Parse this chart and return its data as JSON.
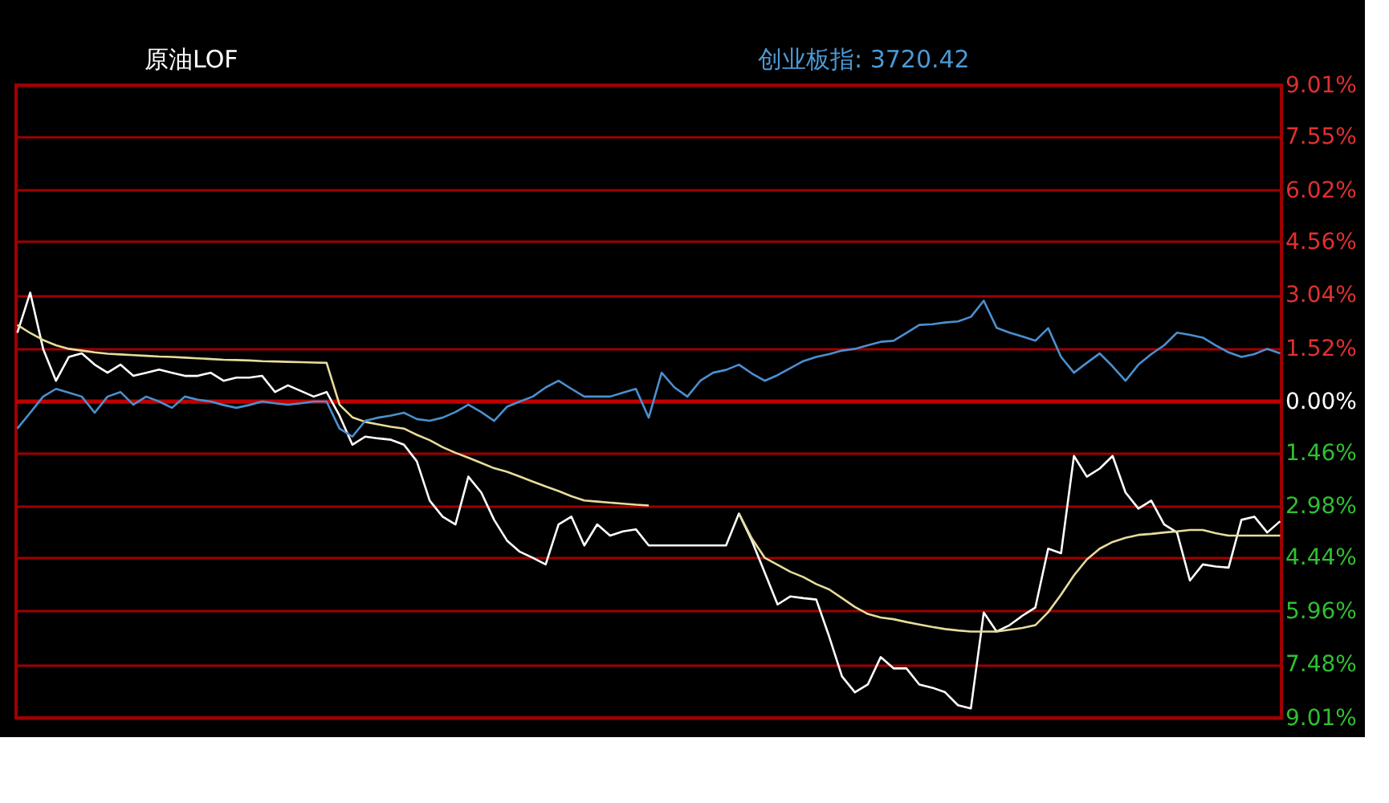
{
  "chart_data": {
    "type": "line",
    "title": "原油LOF",
    "annotations": [
      "创业板指: 3720.42"
    ],
    "categories": [
      null,
      null,
      null,
      null,
      null,
      null,
      null,
      null,
      null,
      null,
      null,
      null,
      null,
      null,
      null,
      null,
      null,
      null,
      null,
      null,
      null,
      null,
      null,
      null,
      null,
      null,
      null,
      null,
      null,
      null,
      null,
      null,
      null,
      null,
      null,
      null,
      null,
      null,
      null,
      null,
      null,
      null,
      null,
      null,
      null,
      null,
      null,
      null,
      null,
      null,
      null,
      null,
      null,
      null,
      null,
      null,
      null,
      null,
      null,
      null,
      null,
      null,
      null,
      null,
      null,
      null,
      null,
      null,
      null,
      null,
      null,
      null,
      null,
      null,
      null,
      null,
      null,
      null,
      null,
      null,
      null,
      null,
      null,
      null,
      null,
      null,
      null,
      null,
      null,
      null,
      null,
      null,
      null,
      null,
      null,
      null,
      null,
      null,
      null
    ],
    "ylim": [
      -9.01,
      9.01
    ],
    "yticks": [
      {
        "value": 9.01,
        "label": "9.01%"
      },
      {
        "value": 7.55,
        "label": "7.55%"
      },
      {
        "value": 6.02,
        "label": "6.02%"
      },
      {
        "value": 4.56,
        "label": "4.56%"
      },
      {
        "value": 3.04,
        "label": "3.04%"
      },
      {
        "value": 1.52,
        "label": "1.52%"
      },
      {
        "value": 0,
        "label": "0.00%"
      },
      {
        "value": -1.46,
        "label": "1.46%"
      },
      {
        "value": -2.98,
        "label": "2.98%"
      },
      {
        "value": -4.44,
        "label": "4.44%"
      },
      {
        "value": -5.96,
        "label": "5.96%"
      },
      {
        "value": -7.48,
        "label": "7.48%"
      },
      {
        "value": -9.01,
        "label": "9.01%"
      }
    ],
    "grid": "y",
    "tick_labels": "y",
    "marker": "none",
    "line_style": "solid",
    "ref_lines": [
      {
        "axis": "y",
        "value": 0,
        "color": "#c00000"
      }
    ],
    "series": [
      {
        "color": "#ffffff",
        "values": [
          1.96,
          3.1,
          1.5,
          0.59,
          1.27,
          1.37,
          1.05,
          0.82,
          1.05,
          0.73,
          0.82,
          0.91,
          0.82,
          0.73,
          0.73,
          0.82,
          0.59,
          0.68,
          0.68,
          0.73,
          0.27,
          0.46,
          0.3,
          0.14,
          0.27,
          -0.4,
          -1.23,
          -1.0,
          -1.05,
          -1.09,
          -1.23,
          -1.7,
          -2.82,
          -3.28,
          -3.5,
          -2.14,
          -2.59,
          -3.37,
          -3.96,
          -4.28,
          -4.45,
          -4.64,
          -3.5,
          -3.28,
          -4.1,
          -3.5,
          -3.82,
          -3.7,
          -3.64,
          -4.1,
          -4.1,
          -4.1,
          -4.1,
          -4.1,
          -4.1,
          -4.1,
          -3.19,
          -3.96,
          -4.87,
          -5.78,
          -5.55,
          -5.6,
          -5.64,
          -6.69,
          -7.83,
          -8.28,
          -8.06,
          -7.28,
          -7.6,
          -7.6,
          -8.06,
          -8.15,
          -8.28,
          -8.65,
          -8.74,
          -6.01,
          -6.55,
          -6.37,
          -6.1,
          -5.87,
          -4.19,
          -4.32,
          -1.55,
          -2.14,
          -1.91,
          -1.55,
          -2.59,
          -3.05,
          -2.82,
          -3.5,
          -3.73,
          -5.1,
          -4.64,
          -4.7,
          -4.73,
          -3.37,
          -3.28,
          -3.73,
          -3.41
        ]
      },
      {
        "color": "#e8dc9a",
        "values": [
          2.18,
          1.95,
          1.75,
          1.6,
          1.5,
          1.45,
          1.4,
          1.36,
          1.34,
          1.32,
          1.3,
          1.28,
          1.27,
          1.25,
          1.23,
          1.21,
          1.19,
          1.18,
          1.17,
          1.15,
          1.14,
          1.13,
          1.12,
          1.11,
          1.1,
          -0.09,
          -0.45,
          -0.58,
          -0.65,
          -0.72,
          -0.77,
          -0.95,
          -1.1,
          -1.3,
          -1.46,
          -1.6,
          -1.75,
          -1.9,
          -2.0,
          -2.14,
          -2.28,
          -2.42,
          -2.55,
          -2.7,
          -2.82,
          -2.85,
          -2.88,
          -2.91,
          -2.94,
          -2.96,
          null,
          null,
          null,
          null,
          null,
          null,
          -3.19,
          -3.9,
          -4.45,
          -4.65,
          -4.85,
          -5.0,
          -5.2,
          -5.35,
          -5.6,
          -5.85,
          -6.05,
          -6.15,
          -6.2,
          -6.28,
          -6.35,
          -6.42,
          -6.48,
          -6.52,
          -6.55,
          -6.55,
          -6.55,
          -6.5,
          -6.45,
          -6.37,
          -6.0,
          -5.5,
          -4.95,
          -4.5,
          -4.19,
          -4.0,
          -3.88,
          -3.8,
          -3.77,
          -3.73,
          -3.7,
          -3.66,
          -3.66,
          -3.75,
          -3.82,
          -3.82,
          -3.82,
          -3.82,
          -3.82
        ]
      },
      {
        "color": "#4a90d0",
        "values": [
          -0.77,
          -0.32,
          0.14,
          0.36,
          0.25,
          0.14,
          -0.32,
          0.14,
          0.27,
          -0.09,
          0.14,
          0,
          -0.18,
          0.14,
          0.05,
          0,
          -0.1,
          -0.18,
          -0.1,
          0,
          -0.05,
          -0.09,
          -0.05,
          0,
          0,
          -0.77,
          -1.0,
          -0.55,
          -0.46,
          -0.4,
          -0.32,
          -0.5,
          -0.55,
          -0.46,
          -0.3,
          -0.09,
          -0.3,
          -0.55,
          -0.15,
          0,
          0.14,
          0.4,
          0.59,
          0.36,
          0.14,
          0.14,
          0.14,
          0.25,
          0.36,
          -0.46,
          0.82,
          0.4,
          0.14,
          0.59,
          0.82,
          0.9,
          1.05,
          0.8,
          0.59,
          0.75,
          0.95,
          1.15,
          1.27,
          1.35,
          1.45,
          1.5,
          1.6,
          1.7,
          1.73,
          1.95,
          2.18,
          2.2,
          2.25,
          2.28,
          2.41,
          2.87,
          2.1,
          1.96,
          1.85,
          1.73,
          2.09,
          1.27,
          0.82,
          1.1,
          1.37,
          1.0,
          0.59,
          1.05,
          1.35,
          1.6,
          1.96,
          1.9,
          1.82,
          1.6,
          1.4,
          1.27,
          1.35,
          1.5,
          1.37
        ]
      }
    ]
  }
}
